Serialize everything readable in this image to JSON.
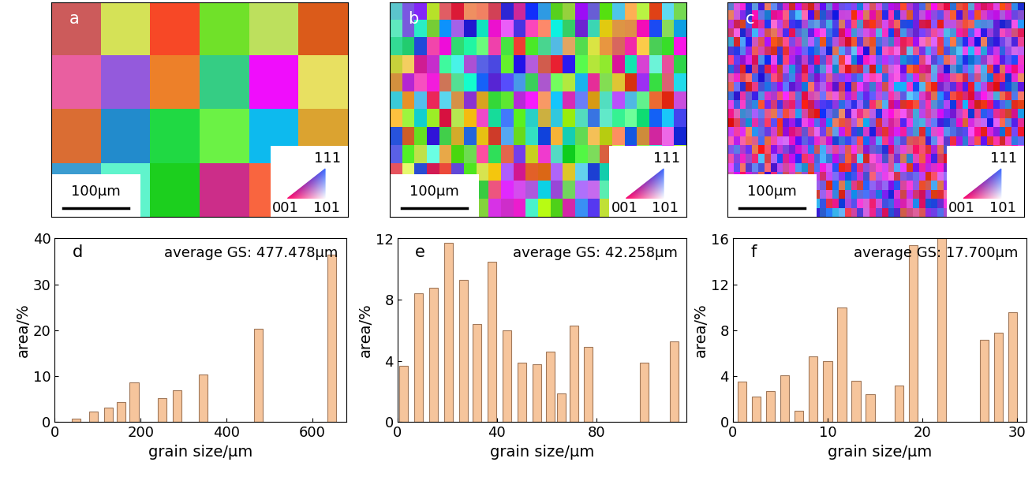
{
  "maps": [
    {
      "label": "a",
      "scale_bar": "100μm",
      "ipf_key": {
        "top": "111",
        "left": "001",
        "right": "101"
      }
    },
    {
      "label": "b",
      "scale_bar": "100μm",
      "ipf_key": {
        "top": "111",
        "left": "001",
        "right": "101"
      }
    },
    {
      "label": "c",
      "scale_bar": "100μm",
      "ipf_key": {
        "top": "111",
        "left": "001",
        "right": "101"
      }
    }
  ],
  "chart_data": [
    {
      "type": "bar",
      "label": "d",
      "annotation": "average GS: 477.478μm",
      "x_label": "grain size/μm",
      "y_label": "area/%",
      "color": "#f6c59c",
      "x": [
        50,
        90,
        125,
        155,
        185,
        250,
        285,
        345,
        475,
        645
      ],
      "values": [
        0.7,
        2.3,
        3.2,
        4.4,
        8.7,
        5.3,
        6.9,
        10.3,
        20.3,
        36.5
      ],
      "xlim": [
        0,
        680
      ],
      "xticks": [
        0,
        200,
        400,
        600
      ],
      "ylim": [
        0,
        40
      ],
      "yticks": [
        0,
        10,
        20,
        30,
        40
      ]
    },
    {
      "type": "bar",
      "label": "e",
      "annotation": "average GS: 42.258μm",
      "x_label": "grain size/μm",
      "y_label": "area/%",
      "color": "#f6c59c",
      "x": [
        2.5,
        8.5,
        14.5,
        20.5,
        26.5,
        32,
        38,
        44,
        50,
        56,
        61.5,
        66,
        71,
        76.5,
        99,
        111
      ],
      "values": [
        3.7,
        8.4,
        8.8,
        11.7,
        9.3,
        6.4,
        10.5,
        6.0,
        3.9,
        3.8,
        4.6,
        1.9,
        6.3,
        4.9,
        3.9,
        5.3
      ],
      "xlim": [
        0,
        116
      ],
      "xticks": [
        0,
        40,
        80
      ],
      "ylim": [
        0,
        12
      ],
      "yticks": [
        0,
        4,
        8,
        12
      ]
    },
    {
      "type": "bar",
      "label": "f",
      "annotation": "average GS: 17.700μm",
      "x_label": "grain size/μm",
      "y_label": "area/%",
      "color": "#f6c59c",
      "x": [
        1,
        2.5,
        4,
        5.5,
        7,
        8.5,
        10,
        11.5,
        13,
        14.5,
        17.5,
        19,
        22,
        26.5,
        28,
        29.5
      ],
      "values": [
        3.5,
        2.2,
        2.7,
        4.1,
        1.0,
        5.7,
        5.3,
        10.0,
        3.6,
        2.4,
        3.2,
        15.4,
        16.0,
        7.2,
        7.8,
        9.6
      ],
      "xlim": [
        0,
        31
      ],
      "xticks": [
        0,
        10,
        20,
        30
      ],
      "ylim": [
        0,
        16
      ],
      "yticks": [
        0,
        4,
        8,
        12,
        16
      ]
    }
  ]
}
